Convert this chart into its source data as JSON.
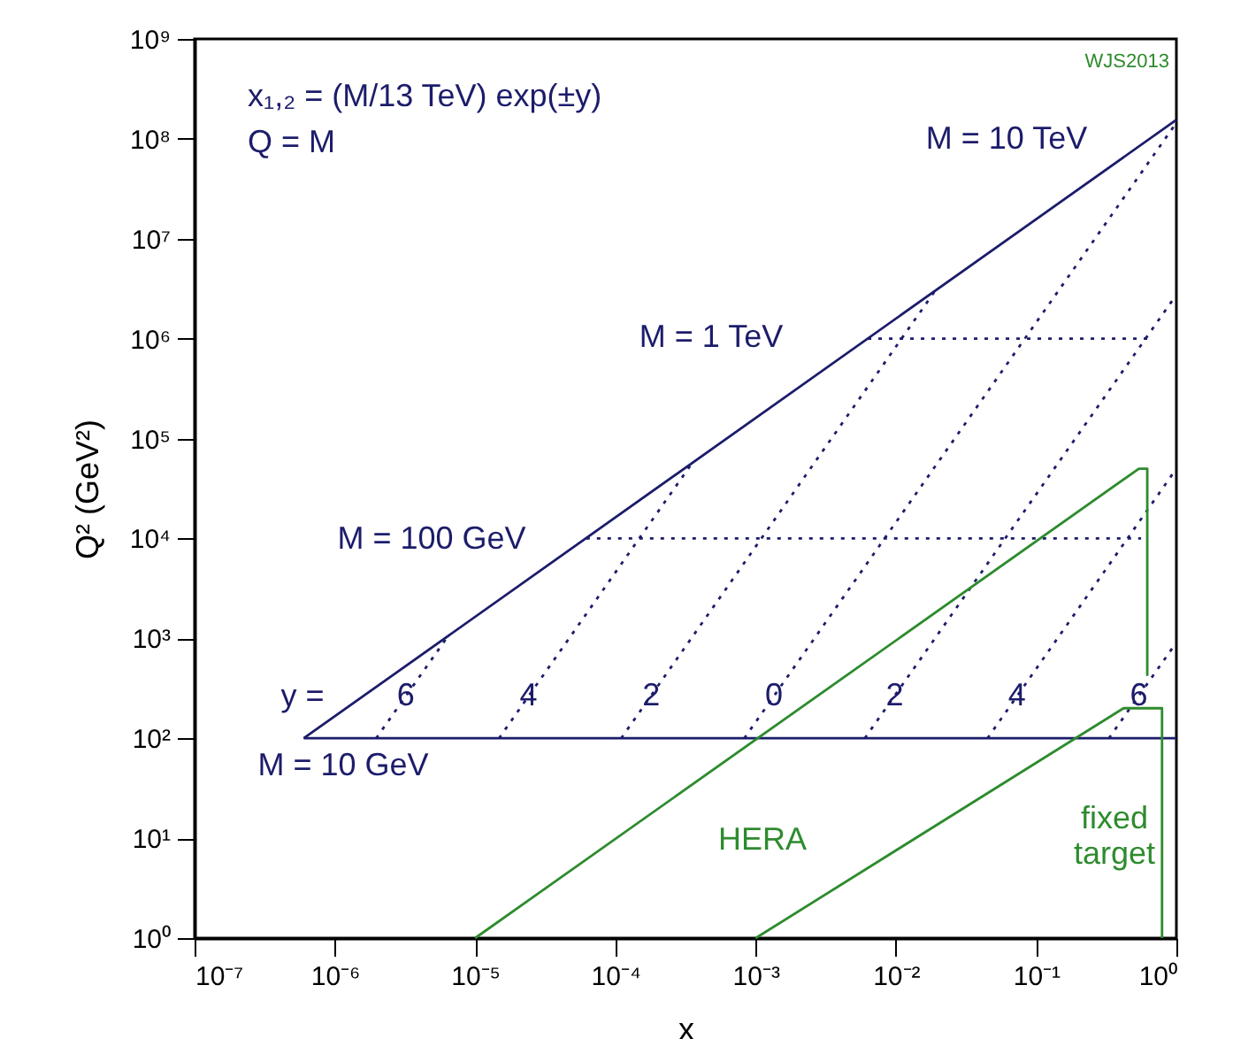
{
  "chart_data": {
    "type": "line",
    "xlabel": "x",
    "ylabel": "Q² (GeV²)",
    "log": "xy",
    "grid": false,
    "marker": "none",
    "xlim": [
      1e-07,
      1
    ],
    "ylim": [
      1,
      1000000000.0
    ],
    "xticks": [
      {
        "value": 1e-07,
        "label": "10⁻⁷"
      },
      {
        "value": 1e-06,
        "label": "10⁻⁶"
      },
      {
        "value": 1e-05,
        "label": "10⁻⁵"
      },
      {
        "value": 0.0001,
        "label": "10⁻⁴"
      },
      {
        "value": 0.001,
        "label": "10⁻³"
      },
      {
        "value": 0.01,
        "label": "10⁻²"
      },
      {
        "value": 0.1,
        "label": "10⁻¹"
      },
      {
        "value": 1,
        "label": "10⁰"
      }
    ],
    "yticks": [
      {
        "value": 1,
        "label": "10⁰"
      },
      {
        "value": 10,
        "label": "10¹"
      },
      {
        "value": 100,
        "label": "10²"
      },
      {
        "value": 1000,
        "label": "10³"
      },
      {
        "value": 10000.0,
        "label": "10⁴"
      },
      {
        "value": 100000.0,
        "label": "10⁵"
      },
      {
        "value": 1000000.0,
        "label": "10⁶"
      },
      {
        "value": 10000000.0,
        "label": "10⁷"
      },
      {
        "value": 100000000.0,
        "label": "10⁸"
      },
      {
        "value": 1000000000.0,
        "label": "10⁹"
      }
    ],
    "series": [
      {
        "color": "#1c1c6b",
        "line_style": "solid",
        "x": [
          6e-07,
          1
        ],
        "values": [
          100,
          155000000.0
        ]
      },
      {
        "color": "#1c1c6b",
        "line_style": "solid",
        "x": [
          6e-07,
          1
        ],
        "values": [
          100,
          100
        ]
      },
      {
        "color": "#1c1c6b",
        "line_style": "dotted",
        "x": [
          6.2e-05,
          0.56
        ],
        "values": [
          10000.0,
          10000.0
        ]
      },
      {
        "color": "#1c1c6b",
        "line_style": "dotted",
        "x": [
          0.0063,
          0.63
        ],
        "values": [
          1000000.0,
          1000000.0
        ]
      },
      {
        "color": "#1c1c6b",
        "line_style": "dotted",
        "x": [
          1.97e-06,
          6.4e-06
        ],
        "values": [
          100,
          1050.0
        ]
      },
      {
        "color": "#1c1c6b",
        "line_style": "dotted",
        "x": [
          1.48e-05,
          0.00035
        ],
        "values": [
          100,
          56000.0
        ]
      },
      {
        "color": "#1c1c6b",
        "line_style": "dotted",
        "x": [
          0.00011,
          0.019
        ],
        "values": [
          100,
          3000000.0
        ]
      },
      {
        "color": "#1c1c6b",
        "line_style": "dotted",
        "x": [
          0.00083,
          1
        ],
        "values": [
          100,
          145000000.0
        ]
      },
      {
        "color": "#1c1c6b",
        "line_style": "dotted",
        "x": [
          0.006,
          1
        ],
        "values": [
          100,
          2750000.0
        ]
      },
      {
        "color": "#1c1c6b",
        "line_style": "dotted",
        "x": [
          0.045,
          1
        ],
        "values": [
          100,
          50000.0
        ]
      },
      {
        "color": "#1c1c6b",
        "line_style": "dotted",
        "x": [
          0.33,
          1
        ],
        "values": [
          100,
          910
        ]
      },
      {
        "color": "#2e8b2e",
        "line_style": "solid",
        "x": [
          1e-05,
          0.54,
          0.62,
          0.62
        ],
        "values": [
          1,
          50000.0,
          50000.0,
          420
        ]
      },
      {
        "color": "#2e8b2e",
        "line_style": "solid",
        "x": [
          0.001,
          0.42,
          0.79,
          0.79
        ],
        "values": [
          1,
          200,
          200,
          1
        ]
      }
    ],
    "annotations": [
      "x₁,₂ = (M/13 TeV) exp(±y)",
      "Q = M",
      "WJS2013",
      "M = 10 TeV",
      "M = 1 TeV",
      "M = 100 GeV",
      "M = 10 GeV",
      "y =",
      {
        "text": "6",
        "x": 3.2e-06,
        "y": 260
      },
      {
        "text": "4",
        "x": 2.4e-05,
        "y": 260
      },
      {
        "text": "2",
        "x": 0.00018,
        "y": 260
      },
      {
        "text": "0",
        "x": 0.00135,
        "y": 260
      },
      {
        "text": "2",
        "x": 0.0098,
        "y": 260
      },
      {
        "text": "4",
        "x": 0.073,
        "y": 260
      },
      {
        "text": "6",
        "x": 0.54,
        "y": 260
      },
      "HERA",
      "fixed\ntarget"
    ]
  }
}
